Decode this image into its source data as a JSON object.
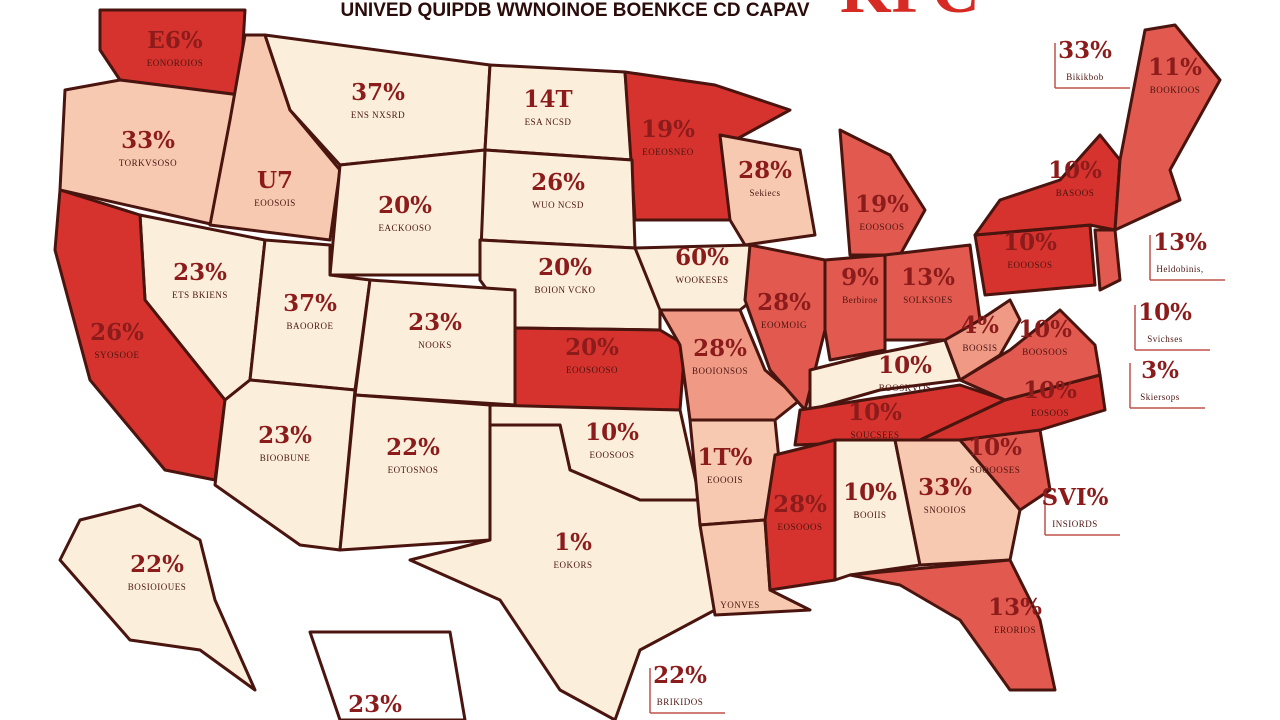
{
  "header": {
    "title": "UNIVED QUIPDB WWNOINOE BOENKCE CD CAPAV",
    "logo": "KFC"
  },
  "regions": [
    {
      "label": "E6%",
      "sub": "EONOROIOS"
    },
    {
      "label": "33%",
      "sub": "TORKVSOSO"
    },
    {
      "label": "U7",
      "sub": "EOOSOIS"
    },
    {
      "label": "37%",
      "sub": "ENS NXSRD"
    },
    {
      "label": "14T",
      "sub": "ESA NCSD"
    },
    {
      "label": "19%",
      "sub": "EOEOSNEO"
    },
    {
      "label": "28%",
      "sub": "Sekiecs"
    },
    {
      "label": "19%",
      "sub": "EOOSOOS"
    },
    {
      "label": "26%",
      "sub": "WUO NCSD"
    },
    {
      "label": "20%",
      "sub": "EACKOOSO"
    },
    {
      "label": "20%",
      "sub": "BOION VCKO"
    },
    {
      "label": "60%",
      "sub": "WOOKESES"
    },
    {
      "label": "23%",
      "sub": "ETS BKIENS"
    },
    {
      "label": "26%",
      "sub": "SYOSOOE"
    },
    {
      "label": "37%",
      "sub": "BAOOROE"
    },
    {
      "label": "23%",
      "sub": "NOOKS"
    },
    {
      "label": "20%",
      "sub": "EOOSOOSO"
    },
    {
      "label": "28%",
      "sub": "BOOIONSOS"
    },
    {
      "label": "28%",
      "sub": "EOOMOIG"
    },
    {
      "label": "9%",
      "sub": "Berbiroe"
    },
    {
      "label": "13%",
      "sub": "SOLKSOES"
    },
    {
      "label": "10%",
      "sub": "BOOSKVOS"
    },
    {
      "label": "10%",
      "sub": "SOUCSEES"
    },
    {
      "label": "23%",
      "sub": "BIOOBUNE"
    },
    {
      "label": "22%",
      "sub": "EOTOSNOS"
    },
    {
      "label": "10%",
      "sub": "EOOSOOS"
    },
    {
      "label": "1%",
      "sub": "EOKORS"
    },
    {
      "label": "1T%",
      "sub": "EOOOIS"
    },
    {
      "sub": "YONVES"
    },
    {
      "label": "28%",
      "sub": "EOSOOOS"
    },
    {
      "label": "10%",
      "sub": "BOOIIS"
    },
    {
      "label": "33%",
      "sub": "SNOOIOS"
    },
    {
      "label": "13%",
      "sub": "ERORIOS"
    },
    {
      "label": "10%",
      "sub": "SOOOOSES"
    },
    {
      "label": "10%",
      "sub": "EOSOOS"
    },
    {
      "label": "10%",
      "sub": "BOOSOOS"
    },
    {
      "label": "4%",
      "sub": "BOOSIS"
    },
    {
      "label": "10%",
      "sub": "EOOOSOS"
    },
    {
      "label": "10%",
      "sub": "BASOOS"
    },
    {
      "label": "11%",
      "sub": "BOOKIOOS"
    },
    {
      "label": "22%",
      "sub": "BOSIOIOUES"
    },
    {
      "label": "23%"
    }
  ],
  "callouts": [
    {
      "label": "33%",
      "sub": "Bikikbob"
    },
    {
      "label": "13%",
      "sub": "Heldobinis,"
    },
    {
      "label": "10%",
      "sub": "Svichses"
    },
    {
      "label": "3%",
      "sub": "Skiersops"
    },
    {
      "label": "SVI%",
      "sub": "INSIORDS"
    },
    {
      "label": "22%",
      "sub": "BRIKIDOS"
    }
  ]
}
